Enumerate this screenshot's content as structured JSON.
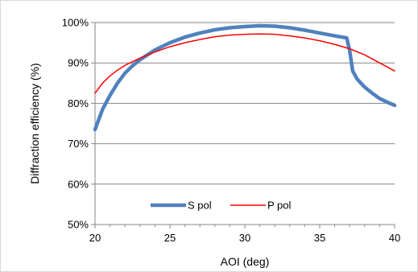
{
  "chart_data": {
    "type": "line",
    "title": "",
    "xlabel": "AOI (deg)",
    "ylabel": "Diffraction efficiency (%)",
    "xlim": [
      20,
      40
    ],
    "ylim": [
      50,
      100
    ],
    "x_ticks": [
      "20",
      "25",
      "30",
      "35",
      "40"
    ],
    "y_ticks": [
      "50%",
      "60%",
      "70%",
      "80%",
      "90%",
      "100%"
    ],
    "grid": "horizontal",
    "legend_position": "lower-center",
    "series": [
      {
        "name": "S pol",
        "color": "#4F81BD",
        "x": [
          20,
          20.5,
          21,
          21.5,
          22,
          22.5,
          23,
          24,
          25,
          26,
          27,
          28,
          29,
          30,
          31,
          32,
          33,
          34,
          35,
          36,
          36.8,
          37,
          37.2,
          37.5,
          38,
          38.5,
          39,
          39.5,
          40
        ],
        "y": [
          73.5,
          78.5,
          82,
          85,
          87.5,
          89.3,
          90.8,
          93.2,
          95,
          96.4,
          97.4,
          98.2,
          98.7,
          99,
          99.2,
          99.1,
          98.7,
          98.1,
          97.4,
          96.7,
          96.2,
          93,
          88,
          86,
          84,
          82.5,
          81.2,
          80.3,
          79.5
        ]
      },
      {
        "name": "P pol",
        "color": "#FF0000",
        "x": [
          20,
          20.5,
          21,
          21.5,
          22,
          22.5,
          23,
          24,
          25,
          26,
          27,
          28,
          29,
          30,
          31,
          32,
          33,
          34,
          35,
          36,
          37,
          38,
          39,
          40
        ],
        "y": [
          82.5,
          85,
          86.8,
          88.2,
          89.4,
          90.3,
          91.2,
          92.7,
          94,
          95,
          95.8,
          96.5,
          96.9,
          97.1,
          97.2,
          97.1,
          96.7,
          96.2,
          95.5,
          94.6,
          93.5,
          92,
          90,
          88
        ]
      }
    ]
  }
}
